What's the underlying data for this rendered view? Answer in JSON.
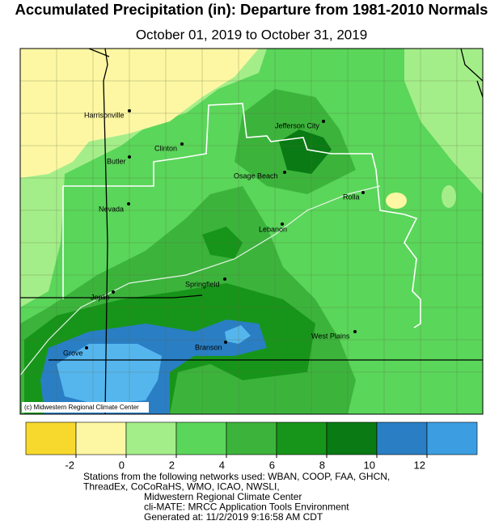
{
  "title": "Accumulated Precipitation (in): Departure from 1981-2010 Normals",
  "subtitle": "October 01, 2019 to October 31, 2019",
  "cities": [
    "Harrisonville",
    "Jefferson City",
    "Clinton",
    "Butler",
    "Osage Beach",
    "Rolla",
    "Nevada",
    "Lebanon",
    "Springfield",
    "Joplin",
    "Branson",
    "West Plains",
    "Grove"
  ],
  "credit": "(c) Midwestern Regional Climate Center",
  "legend": {
    "colors": [
      "#f7d92e",
      "#fdf7a3",
      "#a4ee8a",
      "#5ad65a",
      "#3cb43c",
      "#17951a",
      "#0a7a14",
      "#2a7ec4",
      "#3c9ee0",
      "#55b6ee"
    ],
    "ticks": [
      -2,
      0,
      2,
      4,
      6,
      8,
      10,
      12
    ]
  },
  "footer": [
    "Stations from the following networks used: WBAN, COOP, FAA, GHCN,",
    "ThreadEx, CoCoRaHS, WMO, ICAO, NWSLI,",
    "Midwestern Regional Climate Center",
    "cli-MATE: MRCC Application Tools Environment",
    "Generated at: 11/2/2019 9:16:58 AM CDT"
  ]
}
